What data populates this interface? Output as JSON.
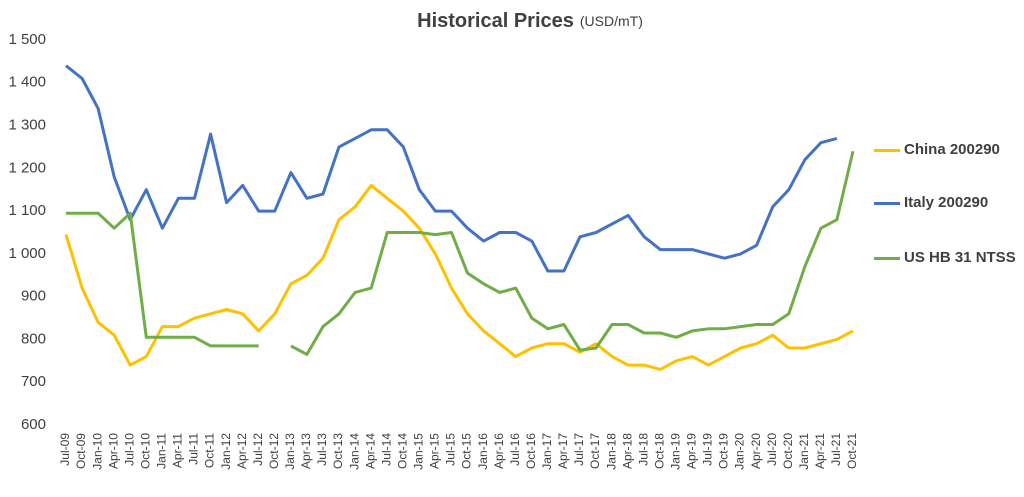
{
  "chart_data": {
    "type": "line",
    "title": "Historical Prices",
    "unit": "(USD/mT)",
    "categories": [
      "Jul-09",
      "Oct-09",
      "Jan-10",
      "Apr-10",
      "Jul-10",
      "Oct-10",
      "Jan-11",
      "Apr-11",
      "Jul-11",
      "Oct-11",
      "Jan-12",
      "Apr-12",
      "Jul-12",
      "Oct-12",
      "Jan-13",
      "Apr-13",
      "Jul-13",
      "Oct-13",
      "Jan-14",
      "Apr-14",
      "Jul-14",
      "Oct-14",
      "Jan-15",
      "Apr-15",
      "Jul-15",
      "Oct-15",
      "Jan-16",
      "Apr-16",
      "Jul-16",
      "Oct-16",
      "Jan-17",
      "Apr-17",
      "Jul-17",
      "Oct-17",
      "Jan-18",
      "Apr-18",
      "Jul-18",
      "Oct-18",
      "Jan-19",
      "Apr-19",
      "Jul-19",
      "Oct-19",
      "Jan-20",
      "Apr-20",
      "Jul-20",
      "Oct-20",
      "Jan-21",
      "Apr-21",
      "Jul-21",
      "Oct-21"
    ],
    "series": [
      {
        "name": "China 200290",
        "color": "#ffc000",
        "values": [
          1045,
          920,
          840,
          810,
          740,
          760,
          830,
          830,
          850,
          860,
          870,
          860,
          820,
          860,
          930,
          950,
          990,
          1080,
          1110,
          1160,
          1130,
          1100,
          1060,
          1000,
          920,
          860,
          820,
          790,
          760,
          780,
          790,
          790,
          770,
          790,
          760,
          740,
          740,
          730,
          750,
          760,
          740,
          760,
          780,
          790,
          810,
          780,
          780,
          790,
          800,
          820
        ]
      },
      {
        "name": "Italy 200290",
        "color": "#4472c4",
        "values": [
          1440,
          1410,
          1340,
          1180,
          1080,
          1150,
          1060,
          1130,
          1130,
          1280,
          1120,
          1160,
          1100,
          1100,
          1190,
          1130,
          1140,
          1250,
          1270,
          1290,
          1290,
          1250,
          1150,
          1100,
          1100,
          1060,
          1030,
          1050,
          1050,
          1030,
          960,
          960,
          1040,
          1050,
          1070,
          1090,
          1040,
          1010,
          1010,
          1010,
          1000,
          990,
          1000,
          1020,
          1110,
          1150,
          1220,
          1260,
          1270,
          null
        ]
      },
      {
        "name": "US HB 31 NTSS",
        "color": "#70ad47",
        "values": [
          1095,
          1095,
          1095,
          1060,
          1095,
          805,
          805,
          805,
          805,
          785,
          785,
          785,
          785,
          null,
          785,
          765,
          830,
          860,
          910,
          920,
          1050,
          1050,
          1050,
          1045,
          1050,
          955,
          930,
          910,
          920,
          850,
          825,
          835,
          775,
          780,
          835,
          835,
          815,
          815,
          805,
          820,
          825,
          825,
          830,
          835,
          835,
          860,
          970,
          1060,
          1080,
          1240
        ]
      }
    ],
    "ylim": [
      600,
      1500
    ],
    "yticks": [
      600,
      700,
      800,
      900,
      {
        "value": 1000,
        "label": "1 000"
      },
      {
        "value": 1100,
        "label": "1 100"
      },
      {
        "value": 1200,
        "label": "1 200"
      },
      {
        "value": 1300,
        "label": "1 300"
      },
      {
        "value": 1400,
        "label": "1 400"
      },
      {
        "value": 1500,
        "label": "1 500"
      }
    ],
    "grid": false,
    "legend": "right"
  }
}
